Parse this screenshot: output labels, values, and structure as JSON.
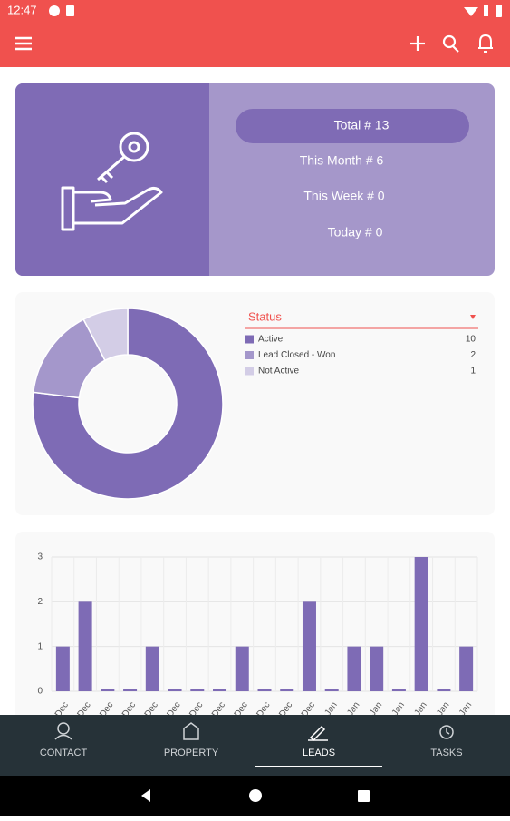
{
  "status_bar": {
    "time": "12:47"
  },
  "summary": {
    "total": "Total # 13",
    "month": "This Month # 6",
    "week": "This Week # 0",
    "today": "Today # 0"
  },
  "chart_data": [
    {
      "type": "pie",
      "title": "Status",
      "categories": [
        "Active",
        "Lead Closed - Won",
        "Not Active"
      ],
      "values": [
        10,
        2,
        1
      ],
      "colors": [
        "#7e6bb5",
        "#a497cb",
        "#d3cde6"
      ]
    },
    {
      "type": "bar",
      "categories": [
        "Dec",
        "Dec",
        "Dec",
        "Dec",
        "Dec",
        "Dec",
        "Dec",
        "Dec",
        "Dec",
        "Dec",
        "Dec",
        "Dec",
        "Jan",
        "Jan",
        "Jan",
        "Jan",
        "Jan",
        "Jan",
        "Jan"
      ],
      "values": [
        1,
        2,
        0,
        0,
        1,
        0,
        0,
        0,
        1,
        0,
        0,
        2,
        0,
        1,
        1,
        0,
        3,
        0,
        1
      ],
      "color": "#7e6bb5",
      "ylim": [
        0,
        3
      ],
      "yticks": [
        0,
        1,
        2,
        3
      ],
      "grid": true
    }
  ],
  "bottom_nav": [
    "CONTACT",
    "PROPERTY",
    "LEADS",
    "TASKS"
  ]
}
